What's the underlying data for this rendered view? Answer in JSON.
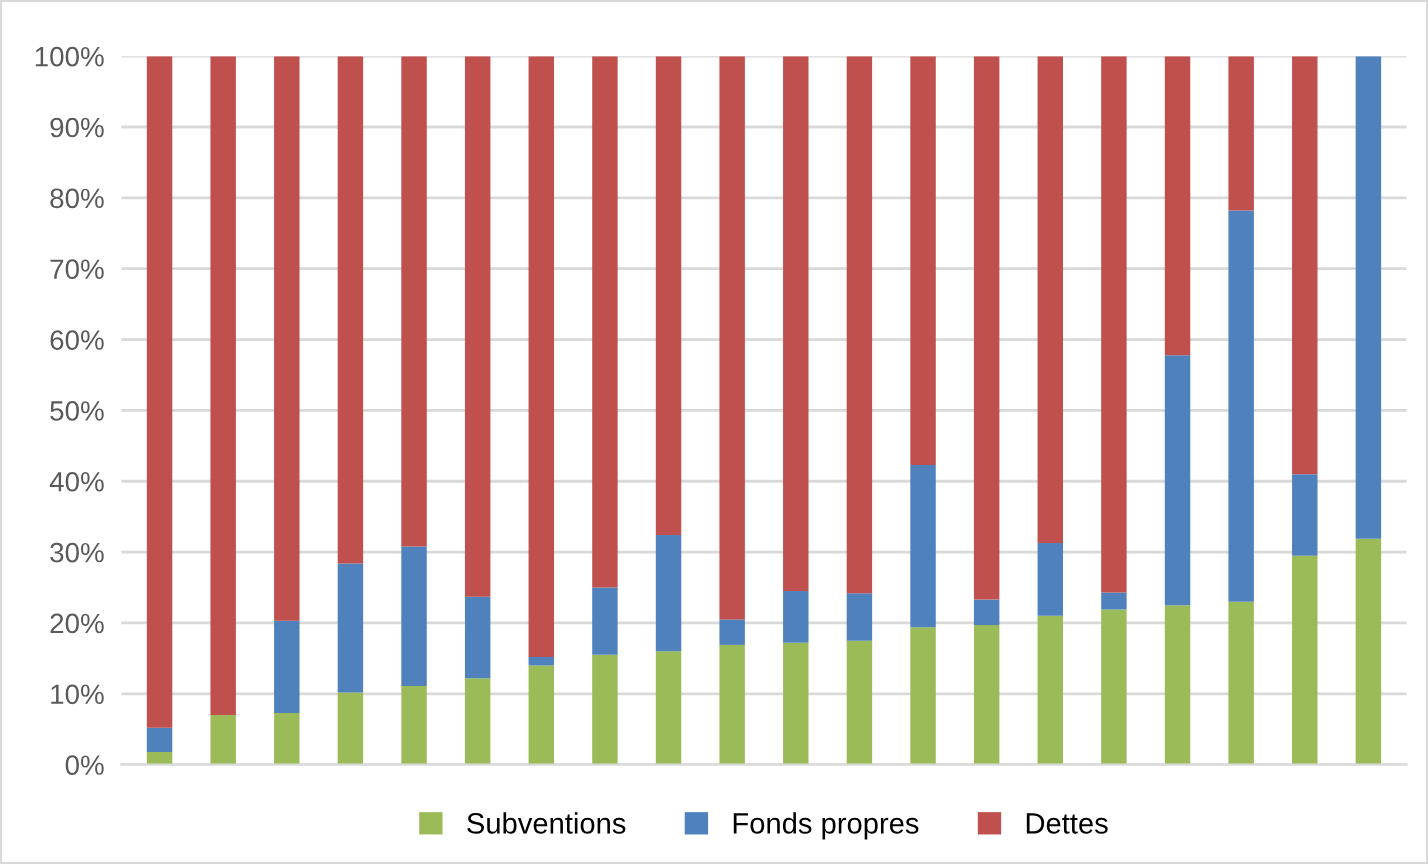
{
  "chart_data": {
    "type": "bar",
    "stacked": true,
    "categories": [
      null,
      null,
      null,
      null,
      null,
      null,
      null,
      null,
      null,
      null,
      null,
      null,
      null,
      null,
      null,
      null,
      null,
      null,
      null,
      null
    ],
    "series": [
      {
        "name": "Subventions",
        "color": "#9bbb59",
        "values": [
          1.8,
          7,
          7.3,
          10.2,
          11.1,
          12.2,
          14,
          15.5,
          16,
          16.9,
          17.2,
          17.5,
          19.4,
          19.7,
          21,
          21.9,
          22.5,
          23,
          29.5,
          31.9
        ]
      },
      {
        "name": "Fonds propres",
        "color": "#4f81bd",
        "values": [
          3.4,
          0,
          13,
          18.2,
          19.7,
          11.5,
          1.2,
          9.5,
          16.4,
          3.6,
          7.3,
          6.7,
          22.9,
          3.6,
          10.3,
          2.4,
          35.3,
          55.2,
          11.5,
          68.1
        ]
      },
      {
        "name": "Dettes",
        "color": "#c0504d",
        "values": [
          94.8,
          93,
          79.7,
          71.6,
          69.2,
          76.3,
          84.8,
          75,
          67.6,
          79.5,
          75.5,
          75.8,
          57.7,
          76.7,
          68.7,
          75.7,
          42.2,
          21.8,
          59,
          0
        ]
      }
    ],
    "ylim": [
      0,
      100
    ],
    "yticks": [
      {
        "value": 0,
        "label": "0%"
      },
      {
        "value": 10,
        "label": "10%"
      },
      {
        "value": 20,
        "label": "20%"
      },
      {
        "value": 30,
        "label": "30%"
      },
      {
        "value": 40,
        "label": "40%"
      },
      {
        "value": 50,
        "label": "50%"
      },
      {
        "value": 60,
        "label": "60%"
      },
      {
        "value": 70,
        "label": "70%"
      },
      {
        "value": 80,
        "label": "80%"
      },
      {
        "value": 90,
        "label": "90%"
      },
      {
        "value": 100,
        "label": "100%"
      }
    ],
    "grid": "y",
    "legend": "bottom"
  }
}
